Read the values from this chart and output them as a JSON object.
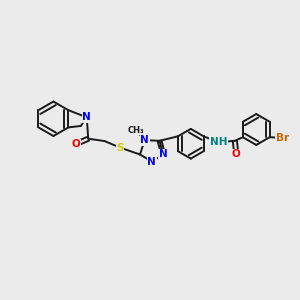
{
  "bg_color": "#ebebeb",
  "bond_color": "#1a1a1a",
  "bond_width": 1.4,
  "atom_colors": {
    "N": "#0000ff",
    "O": "#ff0000",
    "S": "#cccc00",
    "Br": "#cc6600",
    "NH": "#008080",
    "C": "#1a1a1a"
  },
  "font_size": 7.5
}
